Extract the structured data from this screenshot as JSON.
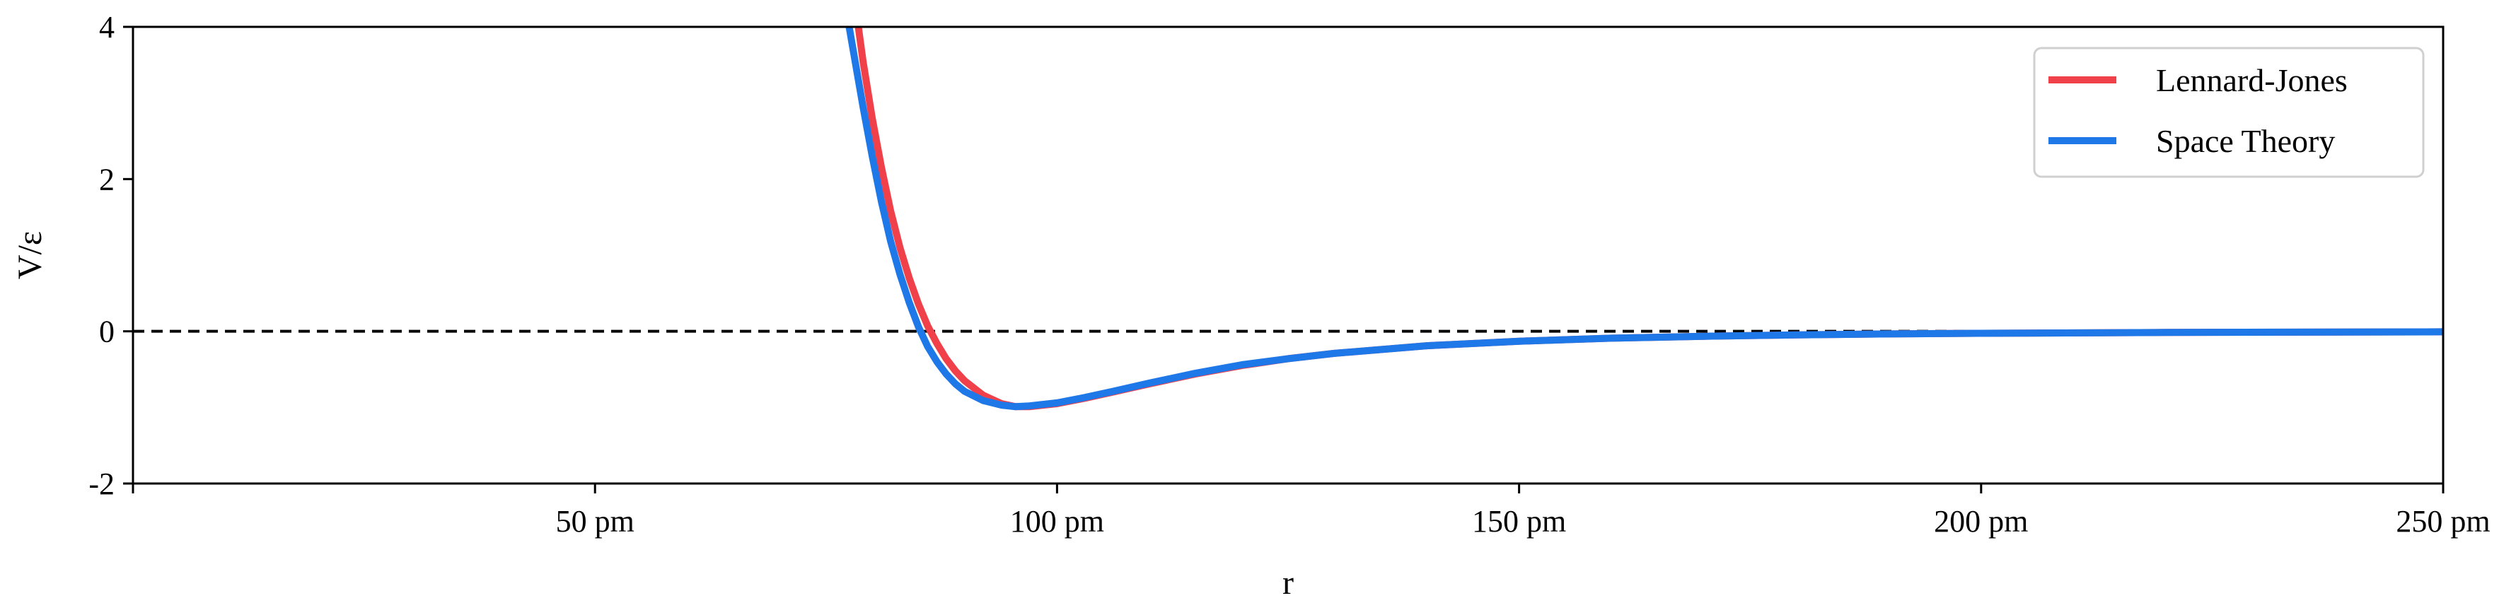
{
  "chart_data": {
    "type": "line",
    "xlabel": "r",
    "ylabel": "V/ε",
    "xlim": [
      0,
      250
    ],
    "ylim": [
      -2,
      4
    ],
    "x_ticks": [
      {
        "value": 50,
        "label": "50 pm"
      },
      {
        "value": 100,
        "label": "100 pm"
      },
      {
        "value": 150,
        "label": "150 pm"
      },
      {
        "value": 200,
        "label": "200 pm"
      },
      {
        "value": 250,
        "label": "250 pm"
      }
    ],
    "y_ticks": [
      {
        "value": -2,
        "label": "-2"
      },
      {
        "value": 0,
        "label": "0"
      },
      {
        "value": 2,
        "label": "2"
      },
      {
        "value": 4,
        "label": "4"
      }
    ],
    "reference_line": {
      "y": 0,
      "style": "dashed",
      "color": "#000000"
    },
    "legend_position": "top-right",
    "series": [
      {
        "name": "Lennard-Jones",
        "color": "#f0404a",
        "x": [
          78.5,
          79,
          80,
          81,
          82,
          83,
          84,
          85,
          86,
          87,
          88,
          89,
          90,
          92,
          94,
          95.5,
          97,
          100,
          103,
          106,
          110,
          115,
          120,
          125,
          130,
          140,
          150,
          160,
          170,
          180,
          190,
          200,
          220,
          250
        ],
        "y": [
          4.0,
          3.55,
          2.8,
          2.15,
          1.58,
          1.1,
          0.7,
          0.36,
          0.07,
          -0.16,
          -0.36,
          -0.52,
          -0.65,
          -0.84,
          -0.95,
          -0.99,
          -0.99,
          -0.95,
          -0.88,
          -0.8,
          -0.69,
          -0.56,
          -0.45,
          -0.36,
          -0.29,
          -0.19,
          -0.13,
          -0.09,
          -0.065,
          -0.047,
          -0.035,
          -0.026,
          -0.015,
          -0.007
        ]
      },
      {
        "name": "Space Theory",
        "color": "#1f78e8",
        "x": [
          77.5,
          78,
          79,
          80,
          81,
          82,
          83,
          84,
          85,
          86,
          87,
          88,
          89,
          90,
          92,
          94,
          95.5,
          97,
          100,
          103,
          106,
          110,
          115,
          120,
          125,
          130,
          140,
          150,
          160,
          170,
          180,
          190,
          200,
          220,
          250
        ],
        "y": [
          4.0,
          3.65,
          2.95,
          2.3,
          1.7,
          1.18,
          0.75,
          0.38,
          0.06,
          -0.2,
          -0.4,
          -0.56,
          -0.69,
          -0.79,
          -0.91,
          -0.97,
          -0.99,
          -0.98,
          -0.94,
          -0.87,
          -0.79,
          -0.68,
          -0.55,
          -0.44,
          -0.36,
          -0.29,
          -0.19,
          -0.13,
          -0.09,
          -0.065,
          -0.047,
          -0.035,
          -0.026,
          -0.015,
          -0.007
        ]
      }
    ]
  }
}
